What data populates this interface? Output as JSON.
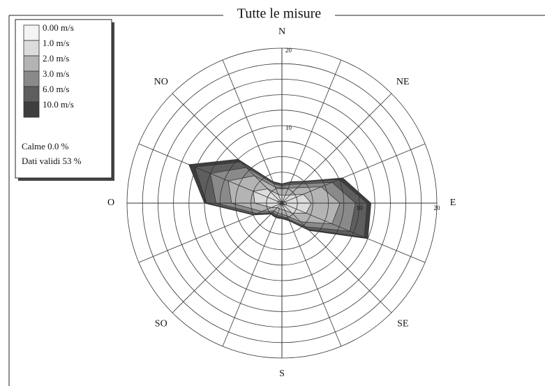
{
  "chart_data": {
    "type": "windrose",
    "title": "Tutte le misure",
    "categories": [
      "N",
      null,
      "NE",
      null,
      "E",
      null,
      "SE",
      null,
      "S",
      null,
      "SO",
      null,
      "O",
      null,
      "NO",
      null
    ],
    "rlim": [
      0,
      20
    ],
    "rticks": [
      10,
      20
    ],
    "rings": [
      2,
      4,
      6,
      8,
      10,
      12,
      14,
      16,
      18,
      20
    ],
    "series": [
      {
        "name": "0.00 m/s",
        "color": "#f4f4f4",
        "values": [
          0.2,
          0.2,
          0.3,
          0.5,
          0.6,
          0.6,
          0.3,
          0.2,
          0.2,
          0.2,
          0.2,
          0.3,
          0.5,
          0.6,
          0.4,
          0.2
        ]
      },
      {
        "name": "1.0 m/s",
        "color": "#dcdcdc",
        "values": [
          0.8,
          0.9,
          1.2,
          2.5,
          3.2,
          2.8,
          1.5,
          0.8,
          0.6,
          0.6,
          0.6,
          1.2,
          3.0,
          3.4,
          2.2,
          1.0
        ]
      },
      {
        "name": "2.0 m/s",
        "color": "#b4b4b4",
        "values": [
          0.8,
          1.0,
          1.3,
          2.5,
          3.7,
          3.6,
          1.6,
          0.8,
          0.6,
          0.6,
          0.6,
          1.3,
          3.0,
          3.5,
          2.4,
          1.0
        ]
      },
      {
        "name": "3.0 m/s",
        "color": "#8a8a8a",
        "values": [
          0.4,
          0.5,
          0.7,
          1.5,
          2.0,
          2.5,
          0.9,
          0.4,
          0.3,
          0.3,
          0.3,
          0.7,
          2.0,
          2.5,
          1.5,
          0.5
        ]
      },
      {
        "name": "6.0 m/s",
        "color": "#5e5e5e",
        "values": [
          0.2,
          0.3,
          0.4,
          1.0,
          1.5,
          2.0,
          0.5,
          0.2,
          0.2,
          0.2,
          0.2,
          0.4,
          1.2,
          2.2,
          1.0,
          0.2
        ]
      },
      {
        "name": "10.0 m/s",
        "color": "#3e3e3e",
        "values": [
          0.1,
          0.1,
          0.1,
          0.5,
          0.5,
          0.5,
          0.2,
          0.1,
          0.1,
          0.1,
          0.1,
          0.1,
          0.3,
          0.8,
          0.5,
          0.1
        ]
      }
    ],
    "notes": [
      "Calme 0.0 %",
      "Dati validi 53 %"
    ]
  }
}
